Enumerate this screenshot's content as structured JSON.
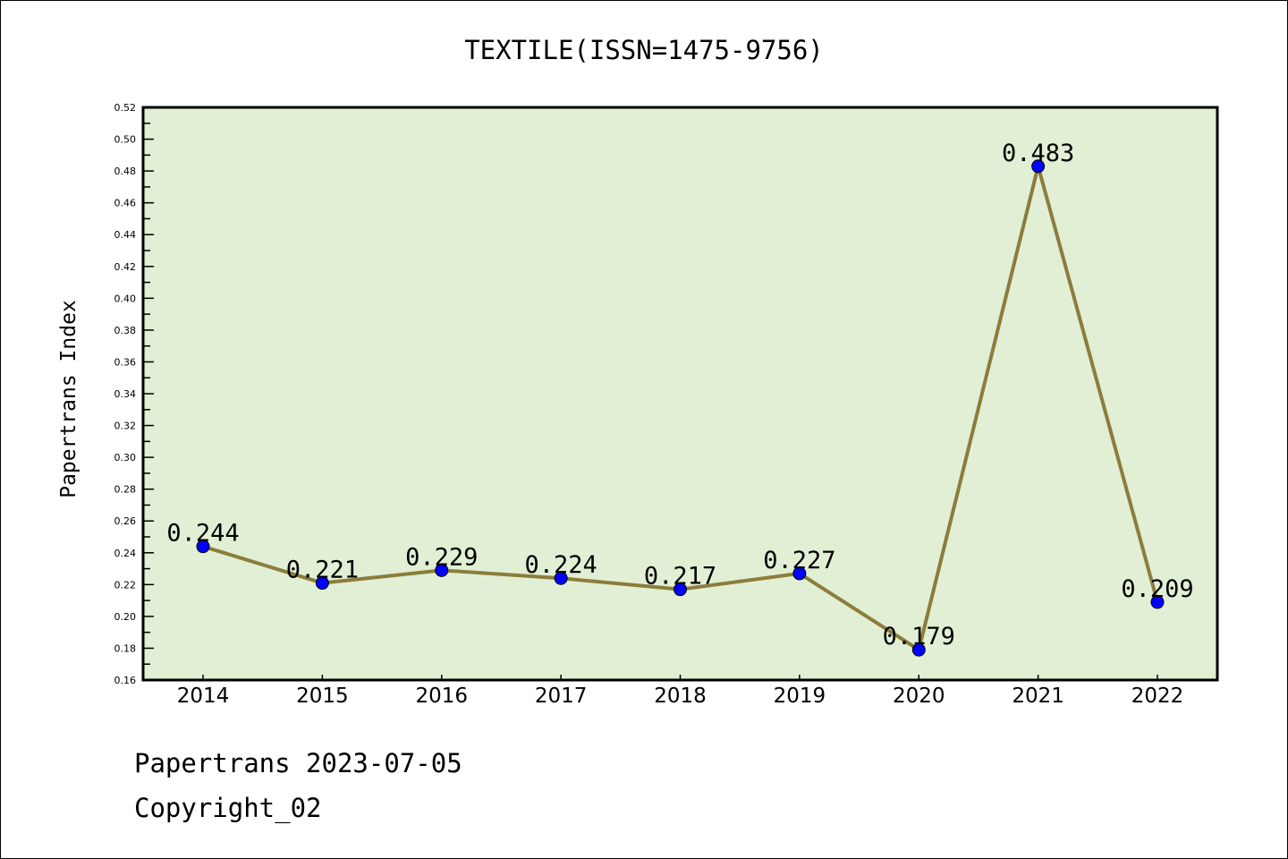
{
  "chart_data": {
    "type": "line",
    "title": "TEXTILE(ISSN=1475-9756)",
    "xlabel": "",
    "ylabel": "Papertrans Index",
    "categories": [
      "2014",
      "2015",
      "2016",
      "2017",
      "2018",
      "2019",
      "2020",
      "2021",
      "2022"
    ],
    "values": [
      0.244,
      0.221,
      0.229,
      0.224,
      0.217,
      0.227,
      0.179,
      0.483,
      0.209
    ],
    "data_labels": [
      "0.244",
      "0.221",
      "0.229",
      "0.224",
      "0.217",
      "0.227",
      "0.179",
      "0.483",
      "0.209"
    ],
    "ylim": [
      0.16,
      0.52
    ],
    "yticks": [
      "0.16",
      "0.18",
      "0.20",
      "0.22",
      "0.24",
      "0.26",
      "0.28",
      "0.30",
      "0.32",
      "0.34",
      "0.36",
      "0.38",
      "0.40",
      "0.42",
      "0.44",
      "0.46",
      "0.48",
      "0.50",
      "0.52"
    ],
    "grid": false,
    "legend": "none",
    "colors": {
      "background": "#e1efd5",
      "line": "#8b7d3a",
      "marker": "#0000ff"
    }
  },
  "footer": {
    "line1": "Papertrans 2023-07-05",
    "line2": "Copyright_02"
  }
}
